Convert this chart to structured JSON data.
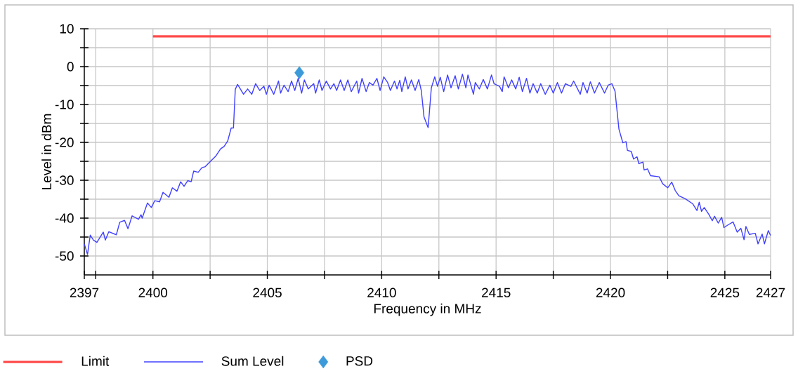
{
  "chart_data": {
    "type": "line",
    "xlabel": "Frequency in MHz",
    "ylabel": "Level in dBm",
    "xlim": [
      2397,
      2427
    ],
    "ylim": [
      -55,
      10
    ],
    "xticks": [
      2397,
      {
        "value": 2397.5,
        "label": null
      },
      2400,
      {
        "value": 2402.5,
        "label": null
      },
      2405,
      {
        "value": 2407.5,
        "label": null
      },
      2410,
      {
        "value": 2412.5,
        "label": null
      },
      2415,
      {
        "value": 2417.5,
        "label": null
      },
      2420,
      {
        "value": 2422.5,
        "label": null
      },
      2425,
      2427
    ],
    "yticks": [
      -50,
      {
        "value": -45,
        "label": null
      },
      -40,
      {
        "value": -35,
        "label": null
      },
      -30,
      {
        "value": -25,
        "label": null
      },
      -20,
      {
        "value": -15,
        "label": null
      },
      -10,
      {
        "value": -5,
        "label": null
      },
      0,
      {
        "value": 5,
        "label": null
      },
      10
    ],
    "grid": true,
    "legend": "bottom",
    "series": [
      {
        "name": "Limit",
        "color": "#ff4b4b",
        "x": [
          2400,
          2427
        ],
        "values": [
          8,
          8
        ]
      },
      {
        "name": "Sum Level",
        "color": "#4040ff",
        "x": [
          2397.0,
          2397.14,
          2397.26,
          2397.4,
          2397.55,
          2397.83,
          2397.92,
          2398.07,
          2398.4,
          2398.55,
          2398.76,
          2398.91,
          2399.09,
          2399.37,
          2399.48,
          2399.53,
          2399.76,
          2399.93,
          2400.08,
          2400.29,
          2400.44,
          2400.7,
          2400.85,
          2401.05,
          2401.21,
          2401.36,
          2401.52,
          2401.67,
          2401.78,
          2401.98,
          2402.14,
          2402.29,
          2402.5,
          2402.75,
          2402.96,
          2403.11,
          2403.27,
          2403.42,
          2403.52,
          2403.6,
          2403.7,
          2403.96,
          2404.14,
          2404.32,
          2404.49,
          2404.67,
          2404.85,
          2404.96,
          2405.08,
          2405.28,
          2405.49,
          2405.58,
          2405.73,
          2405.91,
          2406.06,
          2406.2,
          2406.35,
          2406.5,
          2406.62,
          2406.79,
          2407.03,
          2407.11,
          2407.27,
          2407.39,
          2407.58,
          2407.76,
          2407.91,
          2408.03,
          2408.2,
          2408.36,
          2408.52,
          2408.67,
          2408.91,
          2408.99,
          2409.14,
          2409.32,
          2409.46,
          2409.62,
          2409.79,
          2409.93,
          2410.09,
          2410.26,
          2410.38,
          2410.56,
          2410.67,
          2410.79,
          2410.88,
          2411.03,
          2411.15,
          2411.3,
          2411.46,
          2411.62,
          2411.73,
          2411.85,
          2412.03,
          2412.17,
          2412.32,
          2412.44,
          2412.56,
          2412.71,
          2412.88,
          2413.03,
          2413.21,
          2413.35,
          2413.53,
          2413.68,
          2413.77,
          2414.01,
          2414.09,
          2414.27,
          2414.44,
          2414.62,
          2414.8,
          2414.91,
          2415.15,
          2415.27,
          2415.35,
          2415.54,
          2415.68,
          2415.86,
          2416.01,
          2416.15,
          2416.33,
          2416.48,
          2416.62,
          2416.8,
          2416.95,
          2417.15,
          2417.35,
          2417.5,
          2417.68,
          2417.86,
          2418.03,
          2418.27,
          2418.39,
          2418.68,
          2418.8,
          2418.98,
          2419.12,
          2419.3,
          2419.51,
          2419.74,
          2419.9,
          2420.06,
          2420.2,
          2420.37,
          2420.54,
          2420.68,
          2420.74,
          2420.91,
          2421.01,
          2421.16,
          2421.24,
          2421.42,
          2421.47,
          2421.62,
          2421.75,
          2422.13,
          2422.28,
          2422.5,
          2422.68,
          2422.83,
          2422.99,
          2423.27,
          2423.59,
          2423.78,
          2423.88,
          2423.98,
          2424.1,
          2424.3,
          2424.45,
          2424.55,
          2424.71,
          2424.86,
          2424.96,
          2425.11,
          2425.36,
          2425.54,
          2425.7,
          2425.84,
          2425.92,
          2426.07,
          2426.33,
          2426.45,
          2426.63,
          2426.73,
          2426.9,
          2427.0
        ],
        "values": [
          -46.8,
          -49.6,
          -44.5,
          -45.8,
          -46.4,
          -43.7,
          -45.8,
          -43.6,
          -44.4,
          -41.1,
          -40.6,
          -42.8,
          -39.4,
          -40.3,
          -39.1,
          -40.0,
          -36.0,
          -37.2,
          -35.4,
          -35.7,
          -33.2,
          -34.5,
          -32.0,
          -32.9,
          -30.4,
          -31.6,
          -30.1,
          -30.4,
          -27.6,
          -27.9,
          -26.7,
          -26.4,
          -25.1,
          -23.6,
          -21.7,
          -21.1,
          -19.6,
          -16.2,
          -16.2,
          -6.0,
          -4.7,
          -7.3,
          -5.9,
          -7.3,
          -4.5,
          -6.3,
          -5.2,
          -7.3,
          -4.9,
          -7.3,
          -3.8,
          -7.0,
          -4.9,
          -6.6,
          -3.8,
          -6.3,
          -3.1,
          -7.0,
          -3.5,
          -5.9,
          -4.5,
          -7.0,
          -3.5,
          -6.3,
          -3.8,
          -5.9,
          -4.5,
          -6.3,
          -3.5,
          -6.3,
          -3.5,
          -6.6,
          -3.8,
          -7.0,
          -3.1,
          -6.6,
          -4.2,
          -4.9,
          -3.1,
          -6.3,
          -2.7,
          -4.2,
          -6.3,
          -3.8,
          -5.9,
          -3.6,
          -6.6,
          -2.7,
          -5.9,
          -3.5,
          -6.3,
          -3.4,
          -6.3,
          -13.3,
          -16.1,
          -5.6,
          -2.7,
          -5.2,
          -2.8,
          -6.6,
          -2.2,
          -5.6,
          -2.4,
          -5.9,
          -2.0,
          -5.6,
          -2.2,
          -7.3,
          -4.2,
          -5.9,
          -3.4,
          -5.9,
          -2.2,
          -4.5,
          -5.2,
          -6.6,
          -2.7,
          -5.6,
          -3.5,
          -5.9,
          -2.8,
          -6.6,
          -3.1,
          -7.0,
          -4.5,
          -7.0,
          -4.5,
          -7.3,
          -4.9,
          -7.0,
          -4.2,
          -7.0,
          -4.5,
          -5.2,
          -3.8,
          -7.3,
          -4.2,
          -7.0,
          -4.0,
          -7.0,
          -4.2,
          -7.0,
          -4.9,
          -4.5,
          -6.5,
          -16.5,
          -20.1,
          -19.8,
          -22.1,
          -22.4,
          -24.4,
          -23.8,
          -25.6,
          -25.2,
          -27.3,
          -27.0,
          -28.8,
          -29.1,
          -30.9,
          -32.0,
          -30.5,
          -32.7,
          -34.1,
          -34.9,
          -36.2,
          -38.0,
          -35.8,
          -38.2,
          -37.2,
          -39.0,
          -40.7,
          -39.5,
          -41.3,
          -39.8,
          -42.5,
          -41.9,
          -41.0,
          -43.7,
          -42.7,
          -45.7,
          -42.2,
          -44.3,
          -44.0,
          -46.8,
          -44.2,
          -46.8,
          -43.3,
          -44.6
        ]
      },
      {
        "name": "PSD",
        "type": "scatter",
        "color": "#3d9ad9",
        "marker": "diamond",
        "x": [
          2406.4
        ],
        "values": [
          -1.6
        ]
      }
    ]
  }
}
